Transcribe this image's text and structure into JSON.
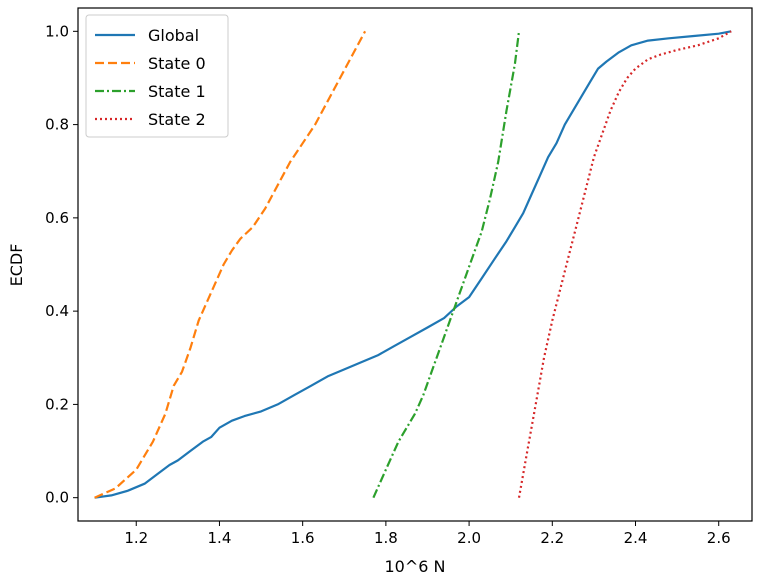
{
  "chart_data": {
    "type": "line",
    "xlabel": "10^6 N",
    "ylabel": "ECDF",
    "xlim": [
      1.06,
      2.68
    ],
    "ylim": [
      -0.05,
      1.05
    ],
    "xticks": [
      1.2,
      1.4,
      1.6,
      1.8,
      2.0,
      2.2,
      2.4,
      2.6
    ],
    "xtick_labels": [
      "1.2",
      "1.4",
      "1.6",
      "1.8",
      "2.0",
      "2.2",
      "2.4",
      "2.6"
    ],
    "yticks": [
      0.0,
      0.2,
      0.4,
      0.6,
      0.8,
      1.0
    ],
    "ytick_labels": [
      "0.0",
      "0.2",
      "0.4",
      "0.6",
      "0.8",
      "1.0"
    ],
    "legend_position": "top-left",
    "grid": false,
    "series": [
      {
        "name": "Global",
        "color": "#1f77b4",
        "dash": "solid",
        "x": [
          1.1,
          1.14,
          1.18,
          1.22,
          1.25,
          1.28,
          1.3,
          1.33,
          1.36,
          1.38,
          1.4,
          1.43,
          1.46,
          1.5,
          1.54,
          1.58,
          1.62,
          1.66,
          1.7,
          1.74,
          1.78,
          1.82,
          1.86,
          1.9,
          1.94,
          1.97,
          2.0,
          2.03,
          2.06,
          2.09,
          2.11,
          2.13,
          2.15,
          2.17,
          2.19,
          2.21,
          2.23,
          2.25,
          2.27,
          2.29,
          2.31,
          2.33,
          2.36,
          2.39,
          2.43,
          2.48,
          2.54,
          2.6,
          2.63
        ],
        "y": [
          0.0,
          0.005,
          0.015,
          0.03,
          0.05,
          0.07,
          0.08,
          0.1,
          0.12,
          0.13,
          0.15,
          0.165,
          0.175,
          0.185,
          0.2,
          0.22,
          0.24,
          0.26,
          0.275,
          0.29,
          0.305,
          0.325,
          0.345,
          0.365,
          0.385,
          0.41,
          0.43,
          0.47,
          0.51,
          0.55,
          0.58,
          0.61,
          0.65,
          0.69,
          0.73,
          0.76,
          0.8,
          0.83,
          0.86,
          0.89,
          0.92,
          0.935,
          0.955,
          0.97,
          0.98,
          0.985,
          0.99,
          0.995,
          1.0
        ]
      },
      {
        "name": "State 0",
        "color": "#ff7f0e",
        "dash": "dashed",
        "x": [
          1.1,
          1.15,
          1.2,
          1.24,
          1.27,
          1.29,
          1.31,
          1.33,
          1.35,
          1.37,
          1.39,
          1.41,
          1.43,
          1.45,
          1.48,
          1.51,
          1.54,
          1.57,
          1.6,
          1.63,
          1.66,
          1.69,
          1.72,
          1.75
        ],
        "y": [
          0.0,
          0.02,
          0.06,
          0.12,
          0.18,
          0.24,
          0.27,
          0.32,
          0.38,
          0.42,
          0.46,
          0.5,
          0.53,
          0.555,
          0.58,
          0.62,
          0.67,
          0.72,
          0.76,
          0.8,
          0.85,
          0.9,
          0.95,
          1.0
        ]
      },
      {
        "name": "State 1",
        "color": "#2ca02c",
        "dash": "dashdot",
        "x": [
          1.77,
          1.79,
          1.81,
          1.83,
          1.85,
          1.87,
          1.89,
          1.91,
          1.93,
          1.95,
          1.97,
          1.99,
          2.01,
          2.03,
          2.05,
          2.07,
          2.09,
          2.11,
          2.12
        ],
        "y": [
          0.0,
          0.04,
          0.08,
          0.12,
          0.15,
          0.18,
          0.22,
          0.27,
          0.32,
          0.37,
          0.42,
          0.47,
          0.52,
          0.57,
          0.64,
          0.72,
          0.83,
          0.93,
          1.0
        ]
      },
      {
        "name": "State 2",
        "color": "#d62728",
        "dash": "dotted",
        "x": [
          2.12,
          2.14,
          2.16,
          2.18,
          2.2,
          2.22,
          2.24,
          2.26,
          2.28,
          2.3,
          2.32,
          2.34,
          2.36,
          2.38,
          2.4,
          2.43,
          2.46,
          2.5,
          2.55,
          2.6,
          2.63
        ],
        "y": [
          0.0,
          0.1,
          0.2,
          0.3,
          0.38,
          0.45,
          0.52,
          0.59,
          0.66,
          0.73,
          0.78,
          0.83,
          0.87,
          0.9,
          0.92,
          0.94,
          0.95,
          0.96,
          0.97,
          0.985,
          1.0
        ]
      }
    ]
  }
}
